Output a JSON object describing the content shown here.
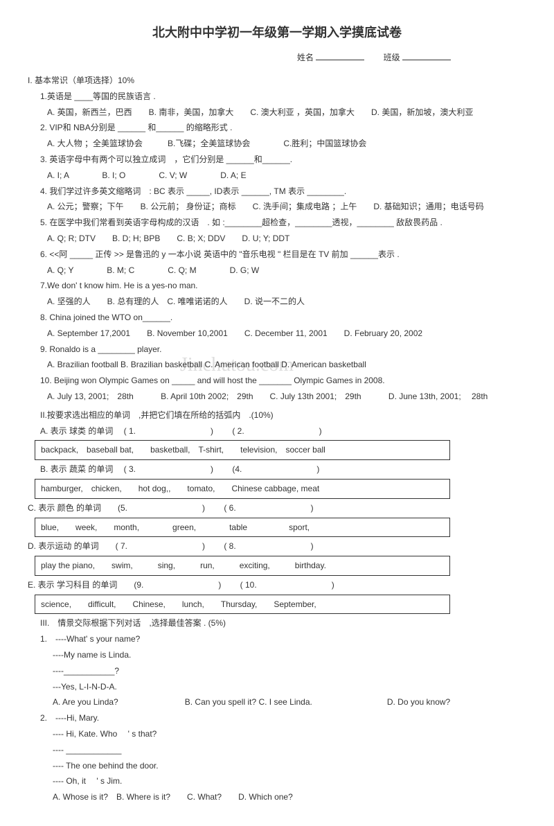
{
  "title": "北大附中中学初一年级第一学期入学摸底试卷",
  "nameLabel": "姓名",
  "classLabel": "班级",
  "section1": {
    "head": "I. 基本常识（单项选择）10%",
    "q1": "1.英语是 ____等国的民族语言 .",
    "q1opts": "A. 英国，新西兰，巴西　　B. 南非，美国，加拿大　　C. 澳大利亚 ，英国，加拿大　　D. 美国，新加坡，澳大利亚",
    "q2": "2. VIP和 NBA分别是 ______ 和______ 的缩略形式  .",
    "q2opts": "A. 大人物 ；全美篮球协会　　　B.飞碟；全美篮球协会　　　　C.胜利；中国篮球协会",
    "q3": "3. 英语字母中有两个可以独立成词　，它们分别是 ______和______.",
    "q3opts": "A. I; A　　　　B. I; O　　　　C. V; W　　　　D. A; E",
    "q4": "4. 我们学过许多英文缩略词　: BC 表示 _____, ID表示 ______, TM 表示 ________.",
    "q4opts": "A. 公元；警察；下午　　B. 公元前； 身份证；商标　　C. 洗手间；集成电路 ；上午　　D.  基础知识；通用；电话号码",
    "q5": "5. 在医学中我们常看到英语字母构成的汉语　. 如 :________超检查，________透视，________ 敌敌畏药品 .",
    "q5opts": "A. Q; R; DTV　　B. D; H; BPB　　C. B; X; DDV　　D. U; Y; DDT",
    "q6": "6. <<阿 _____ 正传  >> 是鲁迅的  y 一本小说  英语中的 \"音乐电视 \" 栏目是在  TV 前加 ______表示 .",
    "q6opts": "A. Q; Y　　　　B. M; C　　　　C. Q; M　　　　D. G; W",
    "q7": "7.We don'  t know him. He is a yes-no man.",
    "q7opts": "A. 坚强的人　　B. 总有理的人　C. 唯唯诺诺的人　　D. 说一不二的人",
    "q8": "8. China joined the WTO on______.",
    "q8opts": "A. September 17,2001　　B. November 10,2001　　C. December 11, 2001　　D. February 20, 2002",
    "q9": "9. Ronaldo is a ________ player.",
    "q9opts": "A. Brazilian football  B. Brazilian basketball C. American football D. American basketball",
    "q10": "10. Beijing won Olympic Games on _____  and will host the _______ Olympic Games in 2008.",
    "q10opts": "A. July 13, 2001;　28th 　　　B. April 10th  2002;　29th　　C. July 13th 2001;　29th 　　　D. June 13th, 2001;　 28th"
  },
  "section2": {
    "head": "II.按要求选出相应的单词　,并把它们填在所给的括弧内　.(10%)",
    "catA": "A. 表示 球类 的单词　 ( 1.　　　　　　　　　)　　 ( 2.　　　　　　　　　)",
    "boxA": "backpack,　baseball bat,　　basketball,　T-shirt,　　television,　soccer ball",
    "catB": "B. 表示 蔬菜 的单词　 ( 3.　　　　　　　　　)　　 (4.　　　　　　　　　)",
    "boxB": "hamburger,　chicken,　　hot dog,,　　tomato,　　Chinese cabbage,  meat",
    "catC": "C. 表示 颜色 的单词　　(5.　　　　　　　　　)　　 ( 6.　　　　　　　　　)",
    "boxC": "blue,　　week,　　month,　　　　green,　　　　table　　　　　sport,",
    "catD": "D. 表示运动 的单词　　( 7.　　　　　　　　　)　　 ( 8.　　　　　　　　　)",
    "boxD": "play the piano,　　swim,　　　sing,　　　run,　　　exciting,　　　birthday.",
    "catE": "E. 表示 学习科目  的单词　　(9.　　　　　　　　　)　　 ( 10.　　　　　　　　　)",
    "boxE": "science,　　difficult,　　Chinese,　　lunch,　　Thursday,　　September,"
  },
  "section3": {
    "head": "III.　情景交际根据下列对话　,选择最佳答案  . (5%)",
    "q1_1": "1.　----What' s your name?",
    "q1_2": "----My name is Linda.",
    "q1_3": "----___________?",
    "q1_4": "---Yes, L-I-N-D-A.",
    "q1opts": "A. Are you Linda?　　　　　　　　B. Can you spell it?  C. I see Linda.　　　　　　　　　D. Do you know?",
    "q2_1": "2.　----Hi, Mary.",
    "q2_2": "---- Hi, Kate. Who 　' s that?",
    "q2_3": "---- ____________",
    "q2_4": "---- The one behind the door.",
    "q2_5": "---- Oh, it 　' s Jim.",
    "q2opts": "A. Whose is it?　B. Where is it?　　C. What?　　D. Which one?"
  },
  "watermark": "Jinchutou.com"
}
